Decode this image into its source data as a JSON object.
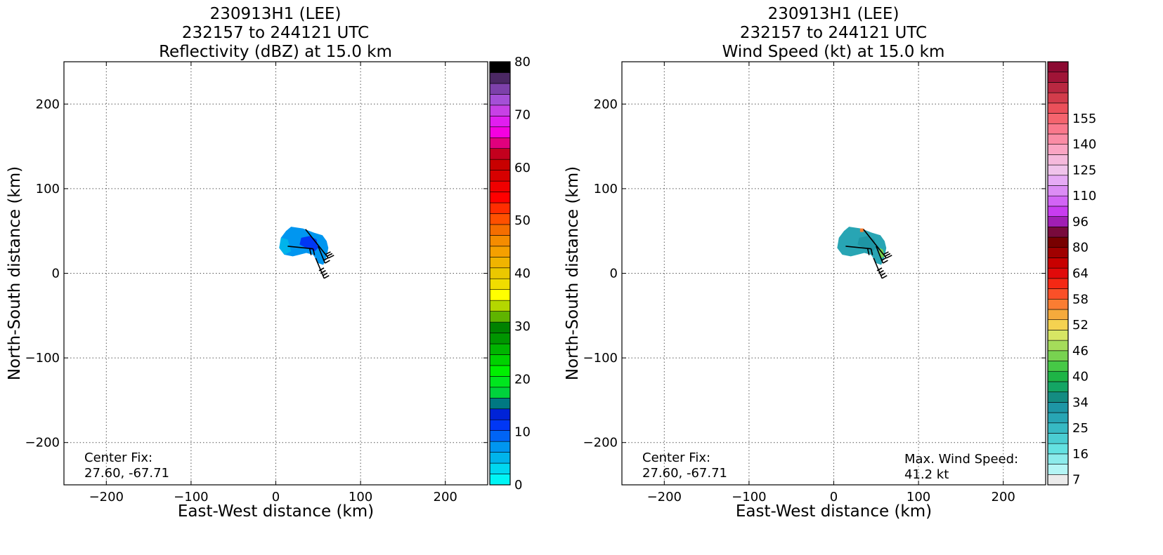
{
  "chart_data": [
    {
      "type": "heatmap",
      "title_lines": [
        "230913H1 (LEE)",
        "232157 to 244121 UTC",
        "Reflectivity (dBZ) at 15.0 km"
      ],
      "xlabel": "East-West distance (km)",
      "ylabel": "North-South distance (km)",
      "xlim": [
        -250,
        250
      ],
      "ylim": [
        -250,
        250
      ],
      "xticks": [
        -200,
        -100,
        0,
        100,
        200
      ],
      "yticks": [
        -200,
        -100,
        0,
        100,
        200
      ],
      "xtick_labels": [
        "−200",
        "−100",
        "0",
        "100",
        "200"
      ],
      "ytick_labels": [
        "−200",
        "−100",
        "0",
        "100",
        "200"
      ],
      "grid": true,
      "annotations": {
        "center_label": "Center Fix:",
        "center_value": "27.60, -67.71"
      },
      "colorbar": {
        "min": 0,
        "max": 80,
        "ticks": [
          0,
          10,
          20,
          30,
          40,
          50,
          60,
          70,
          80
        ],
        "colors": [
          "#00f5f5",
          "#00d7f0",
          "#00b4eb",
          "#0096f0",
          "#0064f5",
          "#0037f5",
          "#0023d7",
          "#007882",
          "#00d23c",
          "#00e61e",
          "#00f000",
          "#00d200",
          "#00b400",
          "#009600",
          "#008200",
          "#5fb400",
          "#b4d700",
          "#ffff00",
          "#f0dc00",
          "#ebc800",
          "#f0b400",
          "#f5a000",
          "#f58c00",
          "#f56e00",
          "#ff5000",
          "#ff2d00",
          "#ff0000",
          "#f00000",
          "#d70000",
          "#c80000",
          "#c3001e",
          "#e1007d",
          "#f500e1",
          "#e11ef0",
          "#c841e6",
          "#a550d7",
          "#7d41aa",
          "#4b2864",
          "#000000"
        ]
      },
      "echo_color_main": "#0096f0",
      "echo_color_core": "#0037f5",
      "echo_color_edge": "#00b4eb"
    },
    {
      "type": "heatmap",
      "title_lines": [
        "230913H1 (LEE)",
        "232157 to 244121 UTC",
        "Wind Speed (kt) at 15.0 km"
      ],
      "xlabel": "East-West distance (km)",
      "ylabel": "North-South distance (km)",
      "xlim": [
        -250,
        250
      ],
      "ylim": [
        -250,
        250
      ],
      "xticks": [
        -200,
        -100,
        0,
        100,
        200
      ],
      "yticks": [
        -200,
        -100,
        0,
        100,
        200
      ],
      "xtick_labels": [
        "−200",
        "−100",
        "0",
        "100",
        "200"
      ],
      "ytick_labels": [
        "−200",
        "−100",
        "0",
        "100",
        "200"
      ],
      "grid": true,
      "annotations": {
        "center_label": "Center Fix:",
        "center_value": "27.60, -67.71",
        "max_label": "Max. Wind Speed:",
        "max_value": "41.2 kt"
      },
      "colorbar": {
        "tick_labels": [
          "7",
          "16",
          "25",
          "34",
          "40",
          "46",
          "52",
          "58",
          "64",
          "80",
          "96",
          "110",
          "125",
          "140",
          "155"
        ],
        "tick_bins": [
          0.5,
          3,
          5.5,
          8,
          10.5,
          13,
          15.5,
          18,
          20.5,
          23,
          25.5,
          28,
          30.5,
          33,
          35.5
        ],
        "colors": [
          "#ebebeb",
          "#b4f5f5",
          "#8cebeb",
          "#64e1e1",
          "#4bcdd2",
          "#37b9c3",
          "#28a5b4",
          "#1e96a5",
          "#148c82",
          "#14a564",
          "#1eb446",
          "#46c846",
          "#78d250",
          "#a5dc5a",
          "#d7e664",
          "#f5d250",
          "#f5aa3c",
          "#fa7d32",
          "#fa5028",
          "#f52814",
          "#e10a0a",
          "#c80000",
          "#a00000",
          "#780000",
          "#780a3c",
          "#a01eb4",
          "#c83cf0",
          "#d264f5",
          "#dc8cf5",
          "#e6aaf5",
          "#f0c3eb",
          "#f5b9dc",
          "#faa5c3",
          "#fa8ca5",
          "#fa788c",
          "#f5646e",
          "#eb505a",
          "#d23c4b",
          "#b92841",
          "#a01437",
          "#8c0a32"
        ]
      },
      "echo_color_main": "#28a5b4",
      "echo_color_core": "#1e96a5",
      "echo_color_hi": "#78d250",
      "echo_color_orange": "#fa7d32"
    }
  ]
}
